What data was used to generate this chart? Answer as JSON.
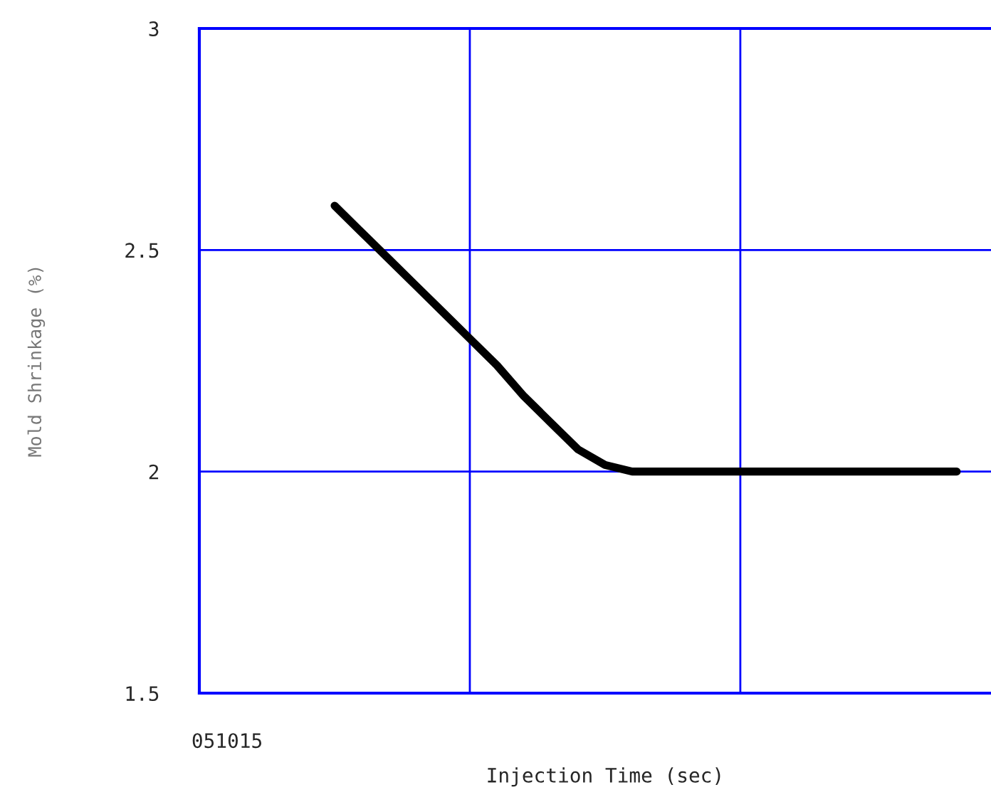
{
  "chart_data": {
    "type": "line",
    "xlabel": "Injection Time (sec)",
    "ylabel": "Mold Shrinkage (%)",
    "categories": [
      null,
      null,
      null,
      null,
      null,
      null,
      null,
      null,
      null,
      null,
      null,
      null,
      null,
      null,
      null,
      null,
      null,
      null,
      null,
      null,
      null,
      null,
      null,
      null
    ],
    "series": [
      {
        "color": "#000000",
        "values": [
          2.6,
          2.54,
          2.48,
          2.42,
          2.36,
          2.3,
          2.24,
          2.17,
          2.11,
          2.05,
          2.015,
          2.0,
          2.0,
          2.0,
          2.0,
          2.0,
          2.0,
          2.0,
          2.0,
          2.0,
          2.0,
          2.0,
          2.0,
          2.0
        ]
      }
    ],
    "ylim": [
      1.5,
      3
    ],
    "yticks": [
      {
        "value": 1.5,
        "label": "1.5"
      },
      {
        "value": 2,
        "label": "2"
      },
      {
        "value": 2.5,
        "label": "2.5"
      },
      {
        "value": 3,
        "label": "3"
      }
    ],
    "annotations": [
      "051015"
    ],
    "grid": true,
    "line_style": "solid"
  }
}
